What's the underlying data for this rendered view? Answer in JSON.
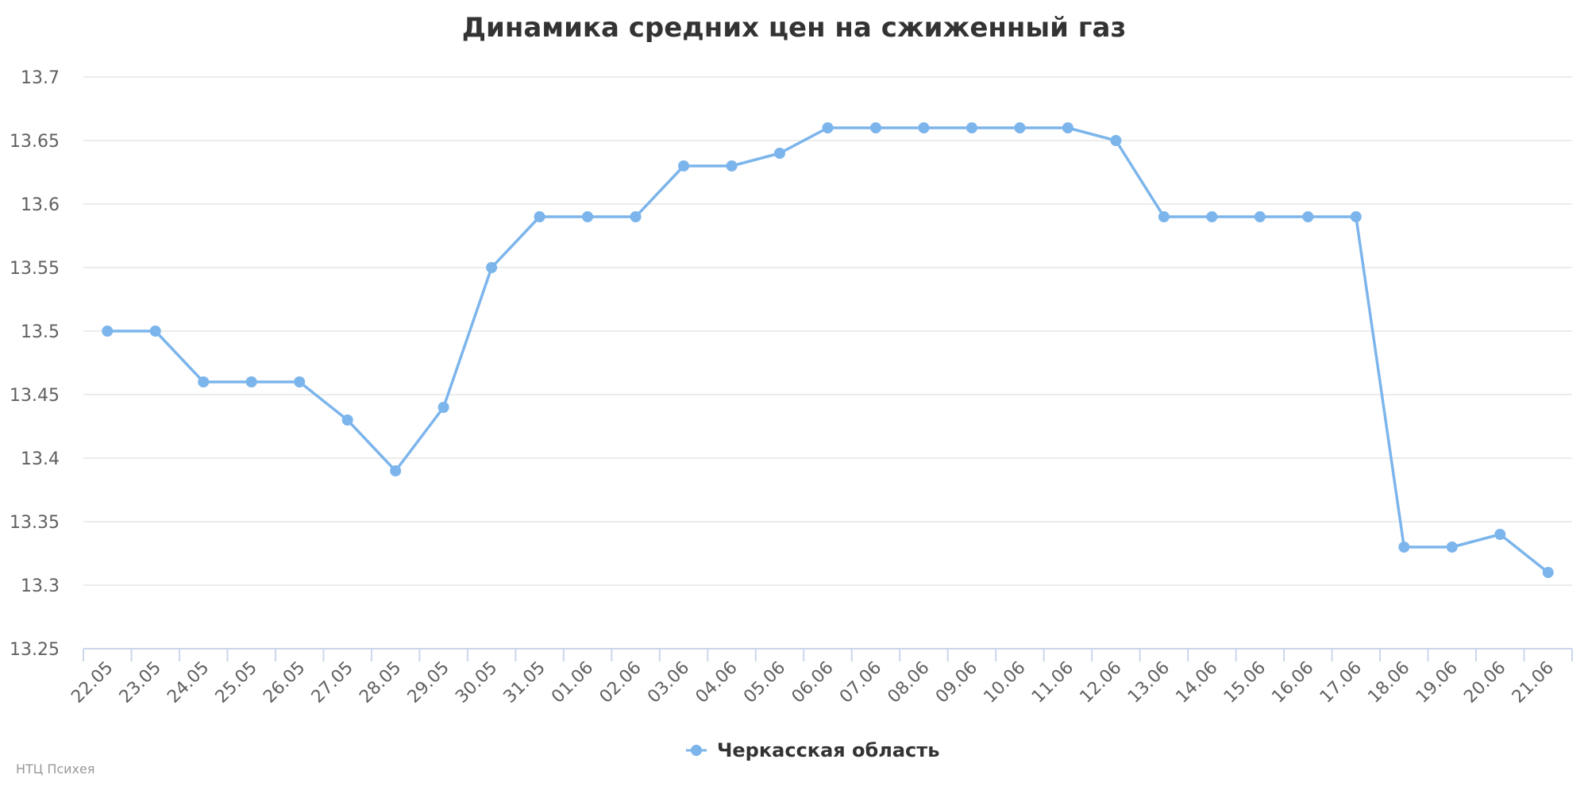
{
  "chart_data": {
    "type": "line",
    "title": "Динамика средних цен на сжиженный газ",
    "categories": [
      "22.05",
      "23.05",
      "24.05",
      "25.05",
      "26.05",
      "27.05",
      "28.05",
      "29.05",
      "30.05",
      "31.05",
      "01.06",
      "02.06",
      "03.06",
      "04.06",
      "05.06",
      "06.06",
      "07.06",
      "08.06",
      "09.06",
      "10.06",
      "11.06",
      "12.06",
      "13.06",
      "14.06",
      "15.06",
      "16.06",
      "17.06",
      "18.06",
      "19.06",
      "20.06",
      "21.06"
    ],
    "series": [
      {
        "name": "Черкасская область",
        "color": "#7cb5ec",
        "values": [
          13.5,
          13.5,
          13.46,
          13.46,
          13.46,
          13.43,
          13.39,
          13.44,
          13.55,
          13.59,
          13.59,
          13.59,
          13.63,
          13.63,
          13.64,
          13.66,
          13.66,
          13.66,
          13.66,
          13.66,
          13.66,
          13.65,
          13.59,
          13.59,
          13.59,
          13.59,
          13.59,
          13.33,
          13.33,
          13.34,
          13.31
        ]
      }
    ],
    "yticks": [
      "13.25",
      "13.3",
      "13.35",
      "13.4",
      "13.45",
      "13.5",
      "13.55",
      "13.6",
      "13.65",
      "13.7"
    ],
    "ylim": [
      13.25,
      13.7
    ],
    "grid": true,
    "legend": "bottom-center"
  },
  "credits": "НТЦ Психея"
}
